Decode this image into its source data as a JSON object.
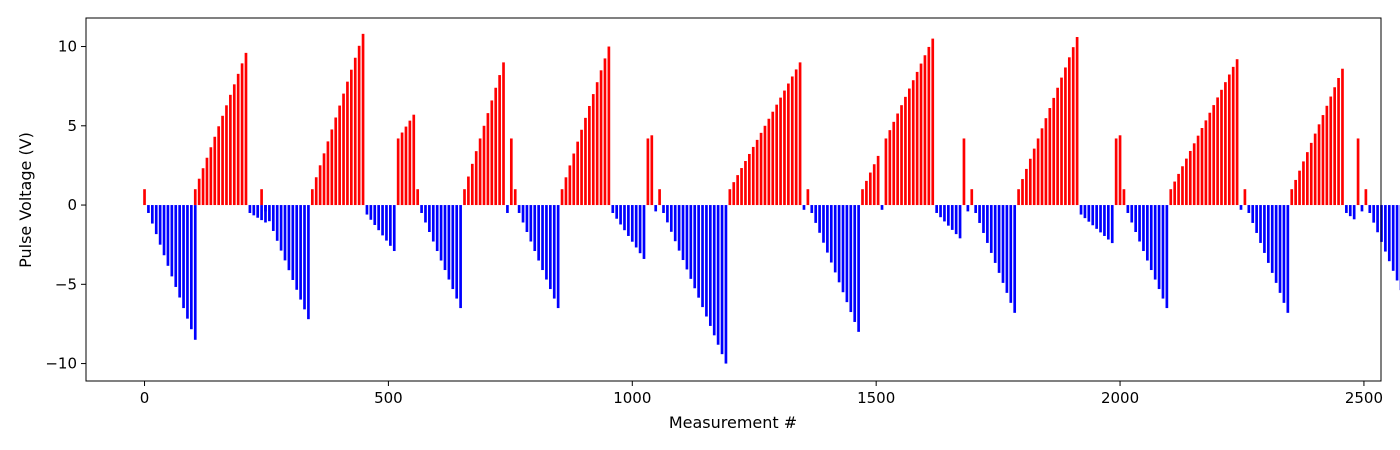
{
  "chart_data": {
    "type": "bar",
    "title": "",
    "xlabel": "Measurement #",
    "ylabel": "Pulse Voltage (V)",
    "xlim": [
      -120,
      2535
    ],
    "ylim": [
      -11.1,
      11.8
    ],
    "x_ticks": [
      0,
      500,
      1000,
      1500,
      2000,
      2500
    ],
    "y_ticks": [
      -10,
      -5,
      0,
      5,
      10
    ],
    "bar_width": 5.5,
    "colors": {
      "positive": "#ff0000",
      "negative": "#0000ff"
    },
    "segments": [
      {
        "start": 0,
        "count": 1,
        "step": 8,
        "from": 1.0,
        "to": 1.0
      },
      {
        "start": 8,
        "count": 13,
        "step": 8,
        "from": -0.5,
        "to": -8.5
      },
      {
        "start": 104,
        "count": 14,
        "step": 8,
        "from": 1.0,
        "to": 9.6
      },
      {
        "start": 216,
        "count": 5,
        "step": 8,
        "from": -0.5,
        "to": -1.1
      },
      {
        "start": 240,
        "count": 1,
        "step": 8,
        "from": 1.0,
        "to": 1.0
      },
      {
        "start": 248,
        "count": 12,
        "step": 8,
        "from": -0.4,
        "to": -7.2
      },
      {
        "start": 344,
        "count": 14,
        "step": 8,
        "from": 1.0,
        "to": 10.8
      },
      {
        "start": 456,
        "count": 8,
        "step": 8,
        "from": -0.6,
        "to": -2.9
      },
      {
        "start": 520,
        "count": 5,
        "step": 8,
        "from": 4.2,
        "to": 5.7
      },
      {
        "start": 560,
        "count": 1,
        "step": 8,
        "from": 1.0,
        "to": 1.0
      },
      {
        "start": 568,
        "count": 11,
        "step": 8,
        "from": -0.5,
        "to": -6.5
      },
      {
        "start": 656,
        "count": 11,
        "step": 8,
        "from": 1.0,
        "to": 9.0
      },
      {
        "start": 744,
        "count": 1,
        "step": 8,
        "from": -0.5,
        "to": -0.5
      },
      {
        "start": 752,
        "count": 1,
        "step": 8,
        "from": 4.2,
        "to": 4.2
      },
      {
        "start": 760,
        "count": 1,
        "step": 8,
        "from": 1.0,
        "to": 1.0
      },
      {
        "start": 768,
        "count": 11,
        "step": 8,
        "from": -0.5,
        "to": -6.5
      },
      {
        "start": 856,
        "count": 13,
        "step": 8,
        "from": 1.0,
        "to": 10.0
      },
      {
        "start": 960,
        "count": 9,
        "step": 8,
        "from": -0.5,
        "to": -3.4
      },
      {
        "start": 1032,
        "count": 2,
        "step": 8,
        "from": 4.2,
        "to": 4.4
      },
      {
        "start": 1048,
        "count": 1,
        "step": 8,
        "from": -0.4,
        "to": -0.4
      },
      {
        "start": 1056,
        "count": 1,
        "step": 8,
        "from": 1.0,
        "to": 1.0
      },
      {
        "start": 1064,
        "count": 17,
        "step": 8,
        "from": -0.5,
        "to": -10.0
      },
      {
        "start": 1200,
        "count": 19,
        "step": 8,
        "from": 1.0,
        "to": 9.0
      },
      {
        "start": 1352,
        "count": 1,
        "step": 8,
        "from": -0.3,
        "to": -0.3
      },
      {
        "start": 1360,
        "count": 1,
        "step": 8,
        "from": 1.0,
        "to": 1.0
      },
      {
        "start": 1368,
        "count": 13,
        "step": 8,
        "from": -0.5,
        "to": -8.0
      },
      {
        "start": 1472,
        "count": 5,
        "step": 8,
        "from": 1.0,
        "to": 3.1
      },
      {
        "start": 1512,
        "count": 1,
        "step": 8,
        "from": -0.3,
        "to": -0.3
      },
      {
        "start": 1520,
        "count": 13,
        "step": 8,
        "from": 4.2,
        "to": 10.5
      },
      {
        "start": 1624,
        "count": 7,
        "step": 8,
        "from": -0.5,
        "to": -2.1
      },
      {
        "start": 1680,
        "count": 1,
        "step": 8,
        "from": 4.2,
        "to": 4.2
      },
      {
        "start": 1688,
        "count": 1,
        "step": 8,
        "from": -0.4,
        "to": -0.4
      },
      {
        "start": 1696,
        "count": 1,
        "step": 8,
        "from": 1.0,
        "to": 1.0
      },
      {
        "start": 1704,
        "count": 11,
        "step": 8,
        "from": -0.5,
        "to": -6.8
      },
      {
        "start": 1792,
        "count": 16,
        "step": 8,
        "from": 1.0,
        "to": 10.6
      },
      {
        "start": 1920,
        "count": 9,
        "step": 8,
        "from": -0.6,
        "to": -2.4
      },
      {
        "start": 1992,
        "count": 2,
        "step": 8,
        "from": 4.2,
        "to": 4.4
      },
      {
        "start": 2008,
        "count": 1,
        "step": 8,
        "from": 1.0,
        "to": 1.0
      },
      {
        "start": 2016,
        "count": 11,
        "step": 8,
        "from": -0.5,
        "to": -6.5
      },
      {
        "start": 2104,
        "count": 18,
        "step": 8,
        "from": 1.0,
        "to": 9.2
      },
      {
        "start": 2248,
        "count": 1,
        "step": 8,
        "from": -0.3,
        "to": -0.3
      },
      {
        "start": 2256,
        "count": 1,
        "step": 8,
        "from": 1.0,
        "to": 1.0
      },
      {
        "start": 2264,
        "count": 11,
        "step": 8,
        "from": -0.5,
        "to": -6.8
      },
      {
        "start": 2352,
        "count": 14,
        "step": 8,
        "from": 1.0,
        "to": 8.6
      },
      {
        "start": 2464,
        "count": 3,
        "step": 8,
        "from": -0.5,
        "to": -0.9
      },
      {
        "start": 2488,
        "count": 1,
        "step": 8,
        "from": 4.2,
        "to": 4.2
      },
      {
        "start": 2496,
        "count": 1,
        "step": 8,
        "from": -0.4,
        "to": -0.4
      },
      {
        "start": 2504,
        "count": 1,
        "step": 8,
        "from": 1.0,
        "to": 1.0
      },
      {
        "start": 2512,
        "count": 13,
        "step": 8,
        "from": -0.5,
        "to": -7.8
      }
    ]
  }
}
